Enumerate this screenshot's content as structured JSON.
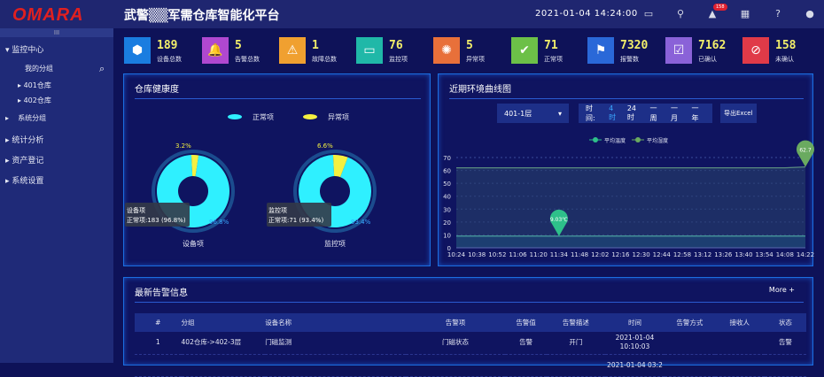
{
  "header": {
    "logo": "OMARA",
    "title": "武警▒▒军需仓库智能化平台",
    "datetime": "2021-01-04 14:24:00",
    "alert_badge": "158",
    "icons": [
      "monitor-icon",
      "location-icon",
      "alert-icon",
      "calendar-icon",
      "help-icon",
      "user-icon"
    ]
  },
  "sidebar": {
    "grip": "III",
    "items": [
      {
        "label": "▾ 监控中心"
      },
      {
        "label": "我的分组"
      },
      {
        "label": "401仓库"
      },
      {
        "label": "402仓库"
      },
      {
        "label": "系统分组"
      },
      {
        "label": "统计分析"
      },
      {
        "label": "资产登记"
      },
      {
        "label": "系统设置"
      }
    ]
  },
  "stats": [
    {
      "value": "189",
      "label": "设备总数",
      "color": "#1a7de0",
      "icon": "cube-icon",
      "glyph": "⬢"
    },
    {
      "value": "5",
      "label": "告警总数",
      "color": "#b048d0",
      "icon": "alarm-bell-icon",
      "glyph": "🔔"
    },
    {
      "value": "1",
      "label": "故障总数",
      "color": "#f0a030",
      "icon": "warning-icon",
      "glyph": "⚠"
    },
    {
      "value": "76",
      "label": "监控项",
      "color": "#20b8a8",
      "icon": "monitor-icon",
      "glyph": "▭"
    },
    {
      "value": "5",
      "label": "异常项",
      "color": "#e8703a",
      "icon": "siren-icon",
      "glyph": "✺"
    },
    {
      "value": "71",
      "label": "正常项",
      "color": "#6cc048",
      "icon": "check-circle-icon",
      "glyph": "✔"
    },
    {
      "value": "7320",
      "label": "报警数",
      "color": "#2a68d8",
      "icon": "beacon-icon",
      "glyph": "⚑"
    },
    {
      "value": "7162",
      "label": "已确认",
      "color": "#8a62d8",
      "icon": "doc-check-icon",
      "glyph": "☑"
    },
    {
      "value": "158",
      "label": "未确认",
      "color": "#e03a48",
      "icon": "doc-pending-icon",
      "glyph": "⊘"
    }
  ],
  "health": {
    "title": "仓库健康度",
    "legend": [
      "正常项",
      "异常项"
    ],
    "colors": [
      "#2ff0ff",
      "#f5f040"
    ],
    "donuts": [
      {
        "name": "设备项",
        "normal": 183,
        "abnormal": 6,
        "normal_pct": "96.8%",
        "abnormal_pct": "3.2%",
        "tip_title": "设备项",
        "tip": "正常项:183 (96.8%)"
      },
      {
        "name": "监控项",
        "normal": 71,
        "abnormal": 5,
        "normal_pct": "93.4%",
        "abnormal_pct": "6.6%",
        "tip_title": "监控项",
        "tip": "正常项:71 (93.4%)"
      }
    ]
  },
  "env": {
    "title": "近期环境曲线图",
    "select": "401-1层",
    "time_label": "时间:",
    "ranges": [
      "4时",
      "24时",
      "一周",
      "一月",
      "一年"
    ],
    "active_range": "4时",
    "export": "导出Excel",
    "chart_data": {
      "type": "area",
      "ylim": [
        0,
        70
      ],
      "yticks": [
        0,
        10,
        20,
        30,
        40,
        50,
        60,
        70
      ],
      "grid": true,
      "legend_position": "top",
      "categories": [
        "10:24",
        "10:38",
        "10:52",
        "11:06",
        "11:20",
        "11:34",
        "11:48",
        "12:02",
        "12:16",
        "12:30",
        "12:44",
        "12:58",
        "13:12",
        "13:26",
        "13:40",
        "13:54",
        "14:08",
        "14:22"
      ],
      "series": [
        {
          "name": "平均温度",
          "color": "#2ec08a",
          "values": [
            9.1,
            9.1,
            9.1,
            9.1,
            9.1,
            9.03,
            9.1,
            9.1,
            9.1,
            9.1,
            9.1,
            9.1,
            9.1,
            9.1,
            9.1,
            9.1,
            9.1,
            9.1
          ],
          "marker": {
            "label": "9.03℃",
            "index": 5
          }
        },
        {
          "name": "平均湿度",
          "color": "#6aaa60",
          "values": [
            62,
            62,
            62,
            62,
            62,
            62,
            62,
            62,
            62,
            62,
            62,
            62,
            62,
            62,
            62,
            62,
            62,
            62.7
          ],
          "marker": {
            "label": "62.7",
            "index": 17
          }
        }
      ]
    }
  },
  "alerts": {
    "title": "最新告警信息",
    "more": "More +",
    "columns": [
      "#",
      "分组",
      "设备名称",
      "告警项",
      "告警值",
      "告警描述",
      "时间",
      "告警方式",
      "接收人",
      "状态"
    ],
    "rows": [
      [
        "1",
        "402仓库->402-3层",
        "门磁监测",
        "门磁状态",
        "告警",
        "开门",
        "2021-01-04 10:10:03",
        "",
        "",
        "告警"
      ],
      [
        "",
        "",
        "",
        "",
        "",
        "",
        "2021-01-04 03:2",
        "",
        "",
        ""
      ]
    ]
  }
}
